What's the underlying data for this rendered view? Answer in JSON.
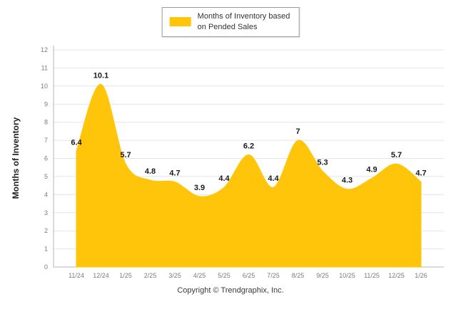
{
  "legend": {
    "line1": "Months of Inventory based",
    "line2": "on Pended Sales"
  },
  "y_axis_title": "Months of Inventory",
  "footer": "Copyright © Trendgraphix, Inc.",
  "colors": {
    "area": "#FFC50A",
    "grid": "#e4e4e4",
    "axis": "#b5b5b5",
    "tick": "#7a7a7a",
    "label": "#1a1a1a"
  },
  "chart_data": {
    "type": "area",
    "title": "",
    "xlabel": "",
    "ylabel": "Months of Inventory",
    "legend": "Months of Inventory based on Pended Sales",
    "legend_position": "top",
    "grid": true,
    "ylim": [
      0,
      12
    ],
    "y_tick_step": 1,
    "x": [
      "11/24",
      "12/24",
      "1/25",
      "2/25",
      "3/25",
      "4/25",
      "5/25",
      "6/25",
      "7/25",
      "8/25",
      "9/25",
      "10/25",
      "11/25",
      "12/25",
      "1/26"
    ],
    "values": [
      6.4,
      10.1,
      5.7,
      4.8,
      4.7,
      3.9,
      4.4,
      6.2,
      4.4,
      7,
      5.3,
      4.3,
      4.9,
      5.7,
      4.7
    ],
    "labels": [
      "6.4",
      "10.1",
      "5.7",
      "4.8",
      "4.7",
      "3.9",
      "4.4",
      "6.2",
      "4.4",
      "7",
      "5.3",
      "4.3",
      "4.9",
      "5.7",
      "4.7"
    ]
  }
}
